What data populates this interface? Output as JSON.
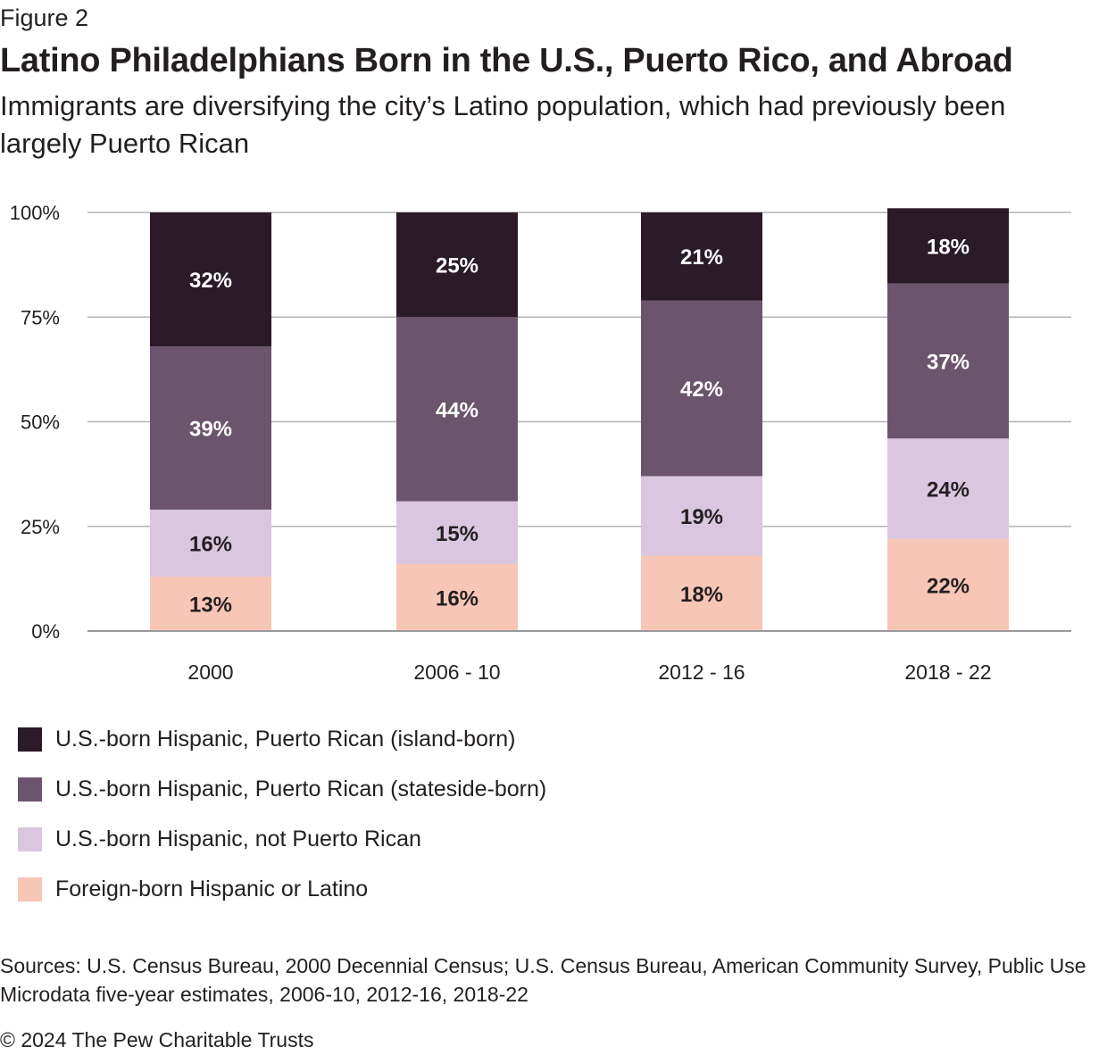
{
  "header": {
    "figure_label": "Figure 2",
    "title": "Latino Philadelphians Born in the U.S., Puerto Rico, and Abroad",
    "subtitle": "Immigrants are diversifying the city’s Latino population, which had previously been largely Puerto Rican"
  },
  "chart_data": {
    "type": "bar",
    "stacked": true,
    "categories": [
      "2000",
      "2006 - 10",
      "2012 - 16",
      "2018 - 22"
    ],
    "y_ticks": [
      "0%",
      "25%",
      "50%",
      "75%",
      "100%"
    ],
    "ylim": [
      0,
      100
    ],
    "grid": true,
    "legend_position": "bottom-left",
    "series": [
      {
        "name": "Foreign-born Hispanic or Latino",
        "color": "#f8c6b6",
        "label_color": "#231f20",
        "values": [
          13,
          16,
          18,
          22
        ]
      },
      {
        "name": "U.S.-born Hispanic, not Puerto Rican",
        "color": "#dac6e0",
        "label_color": "#231f20",
        "values": [
          16,
          15,
          19,
          24
        ]
      },
      {
        "name": "U.S.-born Hispanic, Puerto Rican (stateside-born)",
        "color": "#6d546e",
        "label_color": "#ffffff",
        "values": [
          39,
          44,
          42,
          37
        ]
      },
      {
        "name": "U.S.-born Hispanic, Puerto Rican (island-born)",
        "color": "#2b1a28",
        "label_color": "#ffffff",
        "values": [
          32,
          25,
          21,
          18
        ]
      }
    ]
  },
  "legend": {
    "items": [
      {
        "label": "U.S.-born Hispanic, Puerto Rican (island-born)",
        "color": "#2b1a28"
      },
      {
        "label": "U.S.-born Hispanic, Puerto Rican (stateside-born)",
        "color": "#6d546e"
      },
      {
        "label": "U.S.-born Hispanic, not Puerto Rican",
        "color": "#dac6e0"
      },
      {
        "label": "Foreign-born Hispanic or Latino",
        "color": "#f8c6b6"
      }
    ]
  },
  "footer": {
    "sources": "Sources: U.S. Census Bureau, 2000 Decennial Census; U.S. Census Bureau, American Community Survey, Public Use Microdata five-year estimates, 2006-10, 2012-16, 2018-22",
    "copyright": "© 2024 The Pew Charitable Trusts"
  }
}
